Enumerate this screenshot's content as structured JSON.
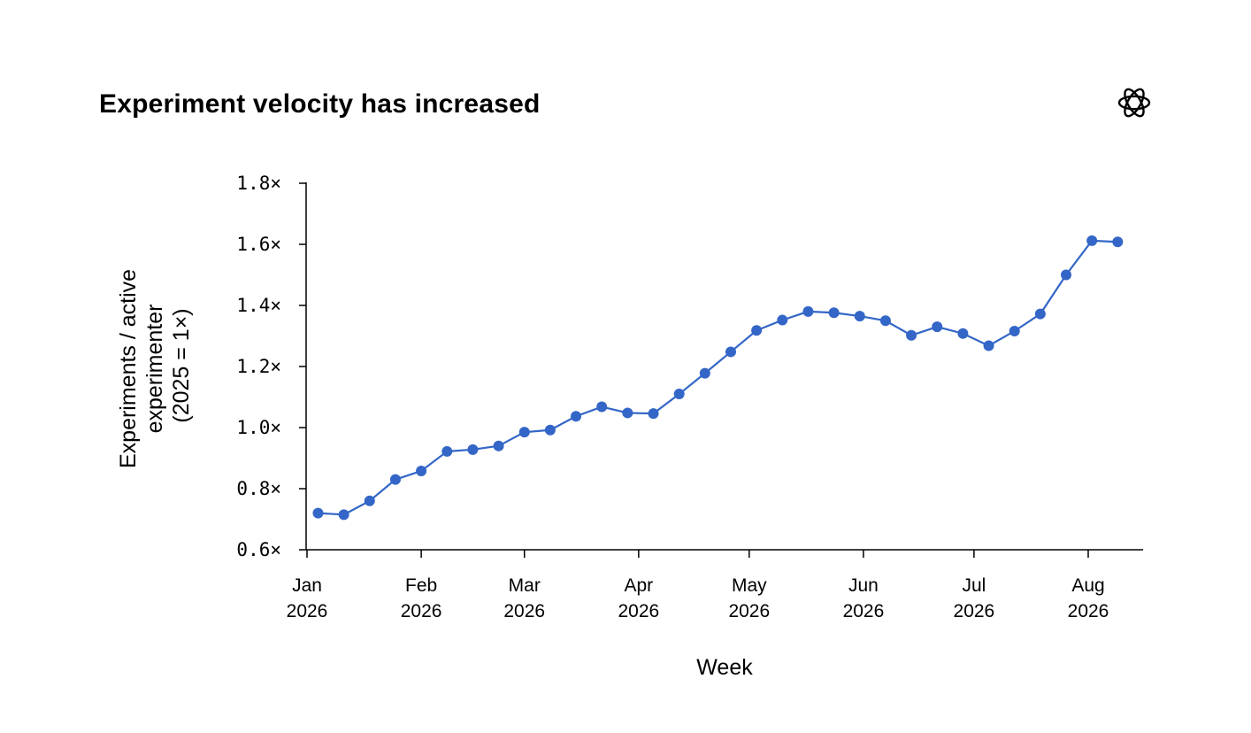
{
  "title": "Experiment velocity has increased",
  "logo_icon": "openai-logo-icon",
  "chart_data": {
    "type": "line",
    "title": "Experiment velocity has increased",
    "xlabel": "Week",
    "ylabel_lines": [
      "Experiments / active",
      "experimenter",
      "(2025 = 1×)"
    ],
    "ylim": [
      0.6,
      1.8
    ],
    "y_ticks": [
      0.6,
      0.8,
      1.0,
      1.2,
      1.4,
      1.6,
      1.8
    ],
    "y_tick_labels": [
      "0.6×",
      "0.8×",
      "1.0×",
      "1.2×",
      "1.4×",
      "1.6×",
      "1.8×"
    ],
    "xlim": [
      "2026-01-01",
      "2026-08-14"
    ],
    "x_ticks": [
      {
        "date": "2026-01-01",
        "label": [
          "Jan",
          "2026"
        ]
      },
      {
        "date": "2026-02-01",
        "label": [
          "Feb",
          "2026"
        ]
      },
      {
        "date": "2026-03-01",
        "label": [
          "Mar",
          "2026"
        ]
      },
      {
        "date": "2026-04-01",
        "label": [
          "Apr",
          "2026"
        ]
      },
      {
        "date": "2026-05-01",
        "label": [
          "May",
          "2026"
        ]
      },
      {
        "date": "2026-06-01",
        "label": [
          "Jun",
          "2026"
        ]
      },
      {
        "date": "2026-07-01",
        "label": [
          "Jul",
          "2026"
        ]
      },
      {
        "date": "2026-08-01",
        "label": [
          "Aug",
          "2026"
        ]
      }
    ],
    "grid": false,
    "color": "#3366c7",
    "series": [
      {
        "x": [
          "2026-01-04",
          "2026-01-11",
          "2026-01-18",
          "2026-01-25",
          "2026-02-01",
          "2026-02-08",
          "2026-02-15",
          "2026-02-22",
          "2026-03-01",
          "2026-03-08",
          "2026-03-15",
          "2026-03-22",
          "2026-03-29",
          "2026-04-05",
          "2026-04-12",
          "2026-04-19",
          "2026-04-26",
          "2026-05-03",
          "2026-05-10",
          "2026-05-17",
          "2026-05-24",
          "2026-05-31",
          "2026-06-07",
          "2026-06-14",
          "2026-06-21",
          "2026-06-28",
          "2026-07-05",
          "2026-07-12",
          "2026-07-19",
          "2026-07-26",
          "2026-08-02",
          "2026-08-09"
        ],
        "y": [
          0.72,
          0.715,
          0.76,
          0.83,
          0.858,
          0.922,
          0.928,
          0.94,
          0.985,
          0.992,
          1.037,
          1.068,
          1.048,
          1.046,
          1.11,
          1.178,
          1.248,
          1.318,
          1.352,
          1.38,
          1.376,
          1.365,
          1.35,
          1.302,
          1.33,
          1.308,
          1.268,
          1.316,
          1.372,
          1.5,
          1.612,
          1.608
        ]
      }
    ]
  }
}
